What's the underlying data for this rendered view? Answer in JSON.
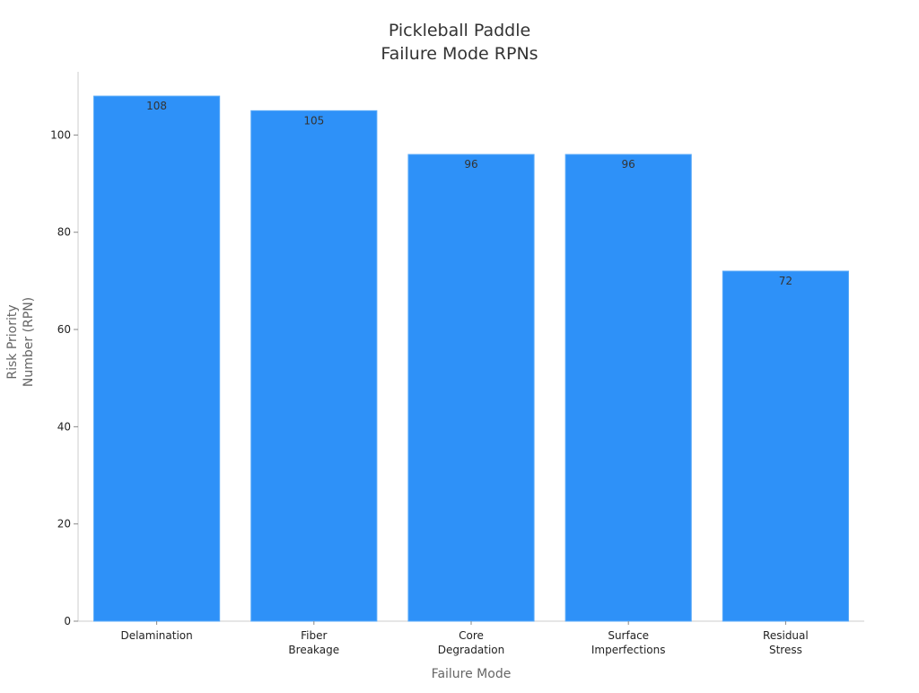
{
  "chart_data": {
    "type": "bar",
    "title_lines": [
      "Pickleball Paddle",
      "Failure Mode RPNs"
    ],
    "xlabel": "Failure Mode",
    "ylabel_lines": [
      "Risk Priority",
      "Number (RPN)"
    ],
    "categories": [
      [
        "Delamination"
      ],
      [
        "Fiber",
        "Breakage"
      ],
      [
        "Core",
        "Degradation"
      ],
      [
        "Surface",
        "Imperfections"
      ],
      [
        "Residual",
        "Stress"
      ]
    ],
    "values": [
      108,
      105,
      96,
      96,
      72
    ],
    "data_labels": [
      "108",
      "105",
      "96",
      "96",
      "72"
    ],
    "ylim": [
      0,
      113
    ],
    "yticks": [
      0,
      20,
      40,
      60,
      80,
      100
    ],
    "grid": false,
    "legend": "none",
    "bar_color": "#2e91f8",
    "bar_edge_color": "#5aaaf8"
  }
}
